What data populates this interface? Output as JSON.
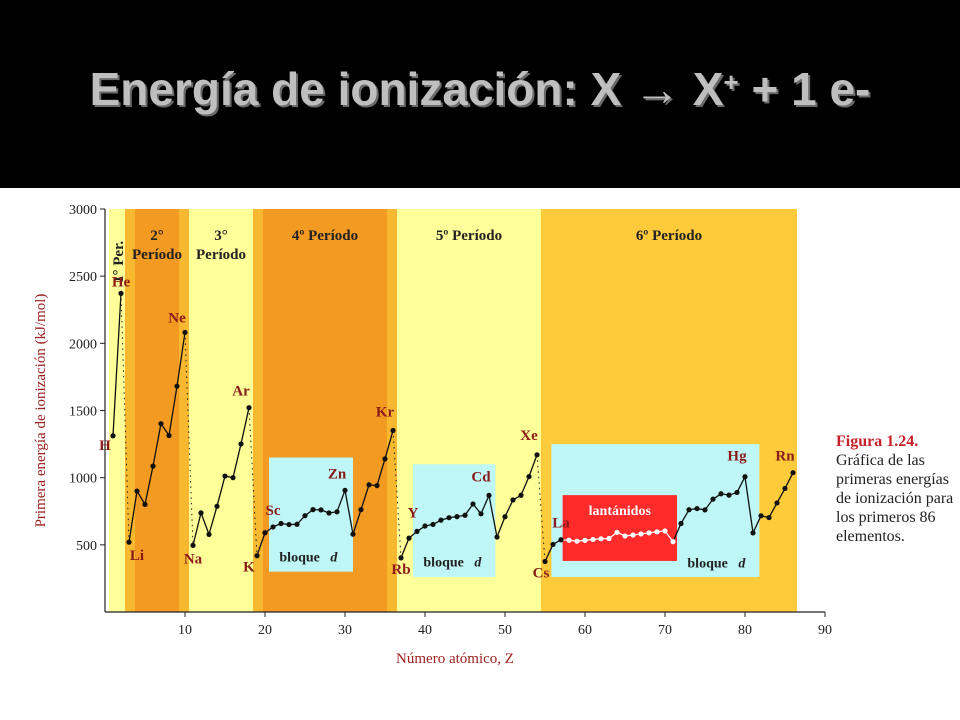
{
  "title": {
    "main": "Energía de ionización: X → X",
    "superscript": "+",
    "tail": " + 1 e-"
  },
  "caption": {
    "figure": "Figura 1.24.",
    "text": "Gráfica de las primeras energías de ionización para los primeros 86 elementos."
  },
  "colors": {
    "title_bg": "#000000",
    "title_text": "#bfbfbf",
    "light_yellow": "#ffff99",
    "orange": "#f8b830",
    "dark_orange": "#f29a22",
    "gold": "#ffcb3a",
    "cyan": "#bff6f6",
    "red": "#ff2a2a",
    "label_red": "#8b1a1a",
    "axis_label": "#9b2020"
  },
  "chart_data": {
    "type": "line",
    "xlabel": "Número atómico, Z",
    "ylabel": "Primera energía de ionización (kJ/mol)",
    "xlim": [
      0,
      90
    ],
    "ylim": [
      0,
      3000
    ],
    "x_ticks": [
      10,
      20,
      30,
      40,
      50,
      60,
      70,
      80,
      90
    ],
    "y_ticks": [
      500,
      1000,
      1500,
      2000,
      2500,
      3000
    ],
    "periods": [
      {
        "label": "1° Per.",
        "z_start": 0.5,
        "z_end": 2.5,
        "color": "light_yellow"
      },
      {
        "label": "2° Período",
        "z_start": 2.5,
        "z_end": 10.5,
        "color": "orange"
      },
      {
        "label": "3° Período",
        "z_start": 10.5,
        "z_end": 18.5,
        "color": "light_yellow"
      },
      {
        "label": "4º Período",
        "z_start": 18.5,
        "z_end": 36.5,
        "color": "orange"
      },
      {
        "label": "5º Período",
        "z_start": 36.5,
        "z_end": 54.5,
        "color": "light_yellow"
      },
      {
        "label": "6º Período",
        "z_start": 54.5,
        "z_end": 86.5,
        "color": "gold"
      }
    ],
    "blocks": [
      {
        "label": "bloque",
        "italic": "d",
        "z_start": 20.5,
        "z_end": 31,
        "ie_low": 300,
        "ie_high": 1150
      },
      {
        "label": "bloque",
        "italic": "d",
        "z_start": 38.5,
        "z_end": 48.8,
        "ie_low": 260,
        "ie_high": 1100
      },
      {
        "label": "bloque",
        "italic": "d",
        "z_start": 55.8,
        "z_end": 81.8,
        "ie_low": 260,
        "ie_high": 1250
      }
    ],
    "lanthanides_box": {
      "label": "lantánidos",
      "z_start": 57.2,
      "z_end": 71.5,
      "ie_low": 380,
      "ie_high": 870
    },
    "element_labels": [
      {
        "symbol": "H",
        "z": 1,
        "ie": 1312
      },
      {
        "symbol": "He",
        "z": 2,
        "ie": 2372
      },
      {
        "symbol": "Li",
        "z": 3,
        "ie": 520
      },
      {
        "symbol": "Ne",
        "z": 10,
        "ie": 2081
      },
      {
        "symbol": "Na",
        "z": 11,
        "ie": 496
      },
      {
        "symbol": "Ar",
        "z": 18,
        "ie": 1521
      },
      {
        "symbol": "K",
        "z": 19,
        "ie": 419
      },
      {
        "symbol": "Sc",
        "z": 21,
        "ie": 633
      },
      {
        "symbol": "Zn",
        "z": 30,
        "ie": 906
      },
      {
        "symbol": "Kr",
        "z": 36,
        "ie": 1351
      },
      {
        "symbol": "Rb",
        "z": 37,
        "ie": 403
      },
      {
        "symbol": "Y",
        "z": 39,
        "ie": 600
      },
      {
        "symbol": "Cd",
        "z": 48,
        "ie": 868
      },
      {
        "symbol": "Xe",
        "z": 54,
        "ie": 1170
      },
      {
        "symbol": "Cs",
        "z": 55,
        "ie": 376
      },
      {
        "symbol": "La",
        "z": 57,
        "ie": 538
      },
      {
        "symbol": "Hg",
        "z": 80,
        "ie": 1007
      },
      {
        "symbol": "Rn",
        "z": 86,
        "ie": 1037
      }
    ],
    "ionization_energy": [
      1312,
      2372,
      520,
      900,
      801,
      1086,
      1402,
      1314,
      1681,
      2081,
      496,
      738,
      578,
      787,
      1012,
      1000,
      1251,
      1521,
      419,
      590,
      633,
      659,
      651,
      653,
      717,
      762,
      760,
      737,
      746,
      906,
      579,
      762,
      947,
      941,
      1140,
      1351,
      403,
      550,
      600,
      640,
      652,
      684,
      702,
      710,
      720,
      804,
      731,
      868,
      558,
      709,
      834,
      869,
      1008,
      1170,
      376,
      503,
      538,
      534,
      527,
      533,
      540,
      545,
      547,
      593,
      566,
      573,
      581,
      589,
      597,
      603,
      524,
      659,
      761,
      770,
      760,
      840,
      880,
      870,
      890,
      1007,
      589,
      716,
      703,
      812,
      920,
      1037
    ]
  }
}
